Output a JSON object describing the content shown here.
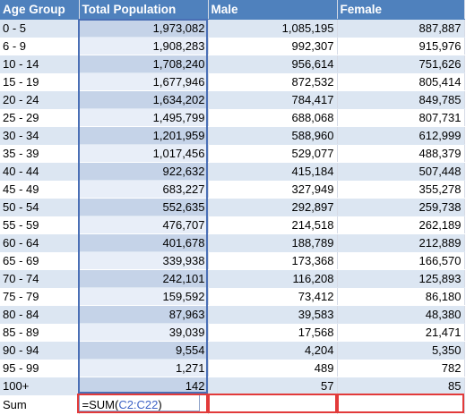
{
  "headers": {
    "col1": "Age Group",
    "col2": "Total Population",
    "col3": "Male",
    "col4": "Female"
  },
  "rows": [
    {
      "age": "0 - 5",
      "total": "1,973,082",
      "male": "1,085,195",
      "female": "887,887"
    },
    {
      "age": "6 - 9",
      "total": "1,908,283",
      "male": "992,307",
      "female": "915,976"
    },
    {
      "age": "10 - 14",
      "total": "1,708,240",
      "male": "956,614",
      "female": "751,626"
    },
    {
      "age": "15 - 19",
      "total": "1,677,946",
      "male": "872,532",
      "female": "805,414"
    },
    {
      "age": "20 - 24",
      "total": "1,634,202",
      "male": "784,417",
      "female": "849,785"
    },
    {
      "age": "25 - 29",
      "total": "1,495,799",
      "male": "688,068",
      "female": "807,731"
    },
    {
      "age": "30 - 34",
      "total": "1,201,959",
      "male": "588,960",
      "female": "612,999"
    },
    {
      "age": "35 - 39",
      "total": "1,017,456",
      "male": "529,077",
      "female": "488,379"
    },
    {
      "age": "40 - 44",
      "total": "922,632",
      "male": "415,184",
      "female": "507,448"
    },
    {
      "age": "45 - 49",
      "total": "683,227",
      "male": "327,949",
      "female": "355,278"
    },
    {
      "age": "50 - 54",
      "total": "552,635",
      "male": "292,897",
      "female": "259,738"
    },
    {
      "age": "55 - 59",
      "total": "476,707",
      "male": "214,518",
      "female": "262,189"
    },
    {
      "age": "60 - 64",
      "total": "401,678",
      "male": "188,789",
      "female": "212,889"
    },
    {
      "age": "65 - 69",
      "total": "339,938",
      "male": "173,368",
      "female": "166,570"
    },
    {
      "age": "70 - 74",
      "total": "242,101",
      "male": "116,208",
      "female": "125,893"
    },
    {
      "age": "75 - 79",
      "total": "159,592",
      "male": "73,412",
      "female": "86,180"
    },
    {
      "age": "80 - 84",
      "total": "87,963",
      "male": "39,583",
      "female": "48,380"
    },
    {
      "age": "85 - 89",
      "total": "39,039",
      "male": "17,568",
      "female": "21,471"
    },
    {
      "age": "90 - 94",
      "total": "9,554",
      "male": "4,204",
      "female": "5,350"
    },
    {
      "age": "95 - 99",
      "total": "1,271",
      "male": "489",
      "female": "782"
    },
    {
      "age": "100+",
      "total": "142",
      "male": "57",
      "female": "85"
    }
  ],
  "sum_row": {
    "label": "Sum",
    "formula_prefix": "=SUM(",
    "formula_ref": "C2:C22",
    "formula_suffix": ")"
  },
  "colors": {
    "header_bg": "#4f81bd",
    "band_row": "#dce6f2",
    "selection_border": "#4a6fb5",
    "highlight_box": "#e23a3a",
    "formula_ref": "#3f64c6"
  }
}
